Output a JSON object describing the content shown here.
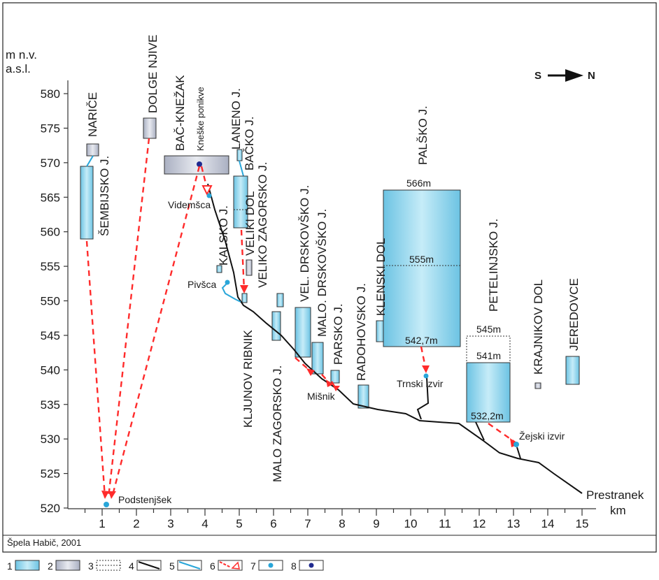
{
  "y_axis": {
    "unit_line1": "m n.v.",
    "unit_line2": "a.s.l.",
    "ticks": [
      "520",
      "525",
      "530",
      "535",
      "540",
      "545",
      "550",
      "555",
      "560",
      "565",
      "570",
      "575",
      "580"
    ]
  },
  "x_axis": {
    "unit": "km",
    "ticks": [
      "1",
      "2",
      "3",
      "4",
      "5",
      "6",
      "7",
      "8",
      "9",
      "10",
      "11",
      "12",
      "13",
      "14",
      "15"
    ]
  },
  "north": {
    "from": "S",
    "to": "N"
  },
  "credit": "Špela Habič, 2001",
  "labels": {
    "narice": "NARIČE",
    "dolge_njive": "DOLGE NJIVE",
    "bac_knezak": "BAČ-KNEŽAK",
    "kneske_ponikve": "Kneške ponikve",
    "laneno": "LANENO J.",
    "backo": "BAČKO J.",
    "sembijsko": "ŠEMBIJSKO J.",
    "kalsko": "KALSKO J.",
    "veliki_dol": "VELIKI DOL",
    "videmsca": "Videmšca",
    "pivsca": "Pivšca",
    "veliko_zagorsko": "VELIKO ZAGORSKO J.",
    "kljunov_ribnik": "KLJUNOV RIBNIK",
    "malo_zagorsko": "MALO ZAGORSKO J.",
    "vel_drskovsko": "VEL. DRSKOVŠKO J.",
    "malo_drskovsko": "MALO. DRSKOVŠKO J.",
    "parsko": "PARSKO J.",
    "misnik": "Mišnik",
    "radohovsko": "RADOHOVSKO J.",
    "klenski_dol": "KLENSKI DOL",
    "palsko": "PALŠKO J.",
    "trnski_izvir": "Trnski izvir",
    "petelinjsko": "PETELINJSKO J.",
    "krajnikov_dol": "KRAJNIKOV DOL",
    "jeredovce": "JEREDOVCE",
    "zejski_izvir": "Žejski izvir",
    "prestranek": "Prestranek",
    "podstenjsek": "Podstenjšek",
    "palsko_566": "566m",
    "palsko_555": "555m",
    "palsko_542": "542,7m",
    "petel_545": "545m",
    "petel_541": "541m",
    "petel_532": "532,2m"
  },
  "legend": [
    "1",
    "2",
    "3",
    "4",
    "5",
    "6",
    "7",
    "8"
  ],
  "colors": {
    "water": "#a9dcef",
    "water_dark": "#6cc3e3",
    "terrain": "#c9cdd8",
    "flow": "#ff2b2b",
    "spring": "#29a6d9",
    "ponor": "#1f2a8f",
    "line": "#111111"
  }
}
